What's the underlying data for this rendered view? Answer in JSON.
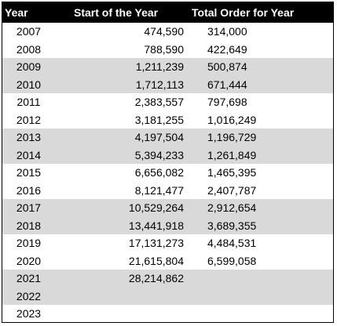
{
  "table": {
    "headers": [
      "Year",
      "Start of the Year",
      "Total Order for Year"
    ],
    "rows": [
      {
        "year": "2007",
        "start": "474,590",
        "total": "314,000",
        "shaded": false
      },
      {
        "year": "2008",
        "start": "788,590",
        "total": "422,649",
        "shaded": false
      },
      {
        "year": "2009",
        "start": "1,211,239",
        "total": "500,874",
        "shaded": true
      },
      {
        "year": "2010",
        "start": "1,712,113",
        "total": "671,444",
        "shaded": true
      },
      {
        "year": "2011",
        "start": "2,383,557",
        "total": "797,698",
        "shaded": false
      },
      {
        "year": "2012",
        "start": "3,181,255",
        "total": "1,016,249",
        "shaded": false
      },
      {
        "year": "2013",
        "start": "4,197,504",
        "total": "1,196,729",
        "shaded": true
      },
      {
        "year": "2014",
        "start": "5,394,233",
        "total": "1,261,849",
        "shaded": true
      },
      {
        "year": "2015",
        "start": "6,656,082",
        "total": "1,465,395",
        "shaded": false
      },
      {
        "year": "2016",
        "start": "8,121,477",
        "total": "2,407,787",
        "shaded": false
      },
      {
        "year": "2017",
        "start": "10,529,264",
        "total": "2,912,654",
        "shaded": true
      },
      {
        "year": "2018",
        "start": "13,441,918",
        "total": "3,689,355",
        "shaded": true
      },
      {
        "year": "2019",
        "start": "17,131,273",
        "total": "4,484,531",
        "shaded": false
      },
      {
        "year": "2020",
        "start": "21,615,804",
        "total": "6,599,058",
        "shaded": false
      },
      {
        "year": "2021",
        "start": "28,214,862",
        "total": "",
        "shaded": true
      },
      {
        "year": "2022",
        "start": "",
        "total": "",
        "shaded": true
      },
      {
        "year": "2023",
        "start": "",
        "total": "",
        "shaded": false
      }
    ]
  },
  "colors": {
    "header_bg": "#000000",
    "header_text": "#ffffff",
    "shade": "#d9d9d9"
  }
}
